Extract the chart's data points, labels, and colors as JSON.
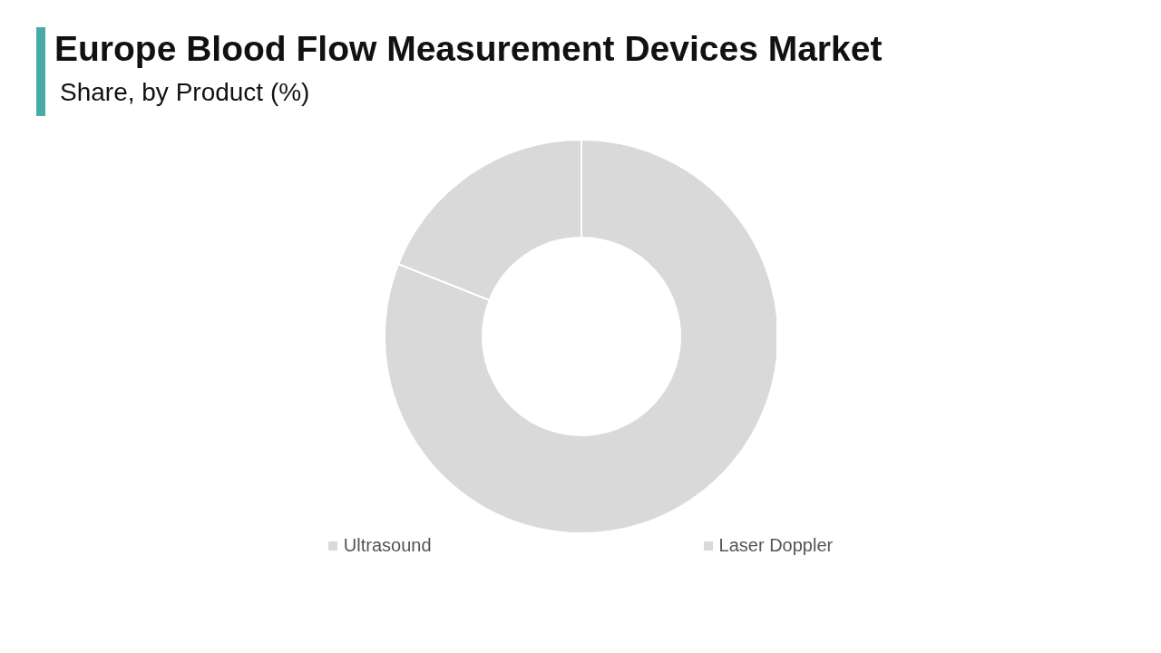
{
  "chart_data": {
    "type": "donut",
    "title": "Europe Blood Flow Measurement Devices Market",
    "subtitle": "Share, by Product  (%)",
    "categories": [
      "Ultrasound",
      "Laser Doppler"
    ],
    "values": [
      81,
      19
    ],
    "colors": [
      "#d9d9d9",
      "#d9d9d9"
    ],
    "legend": "bottom"
  }
}
